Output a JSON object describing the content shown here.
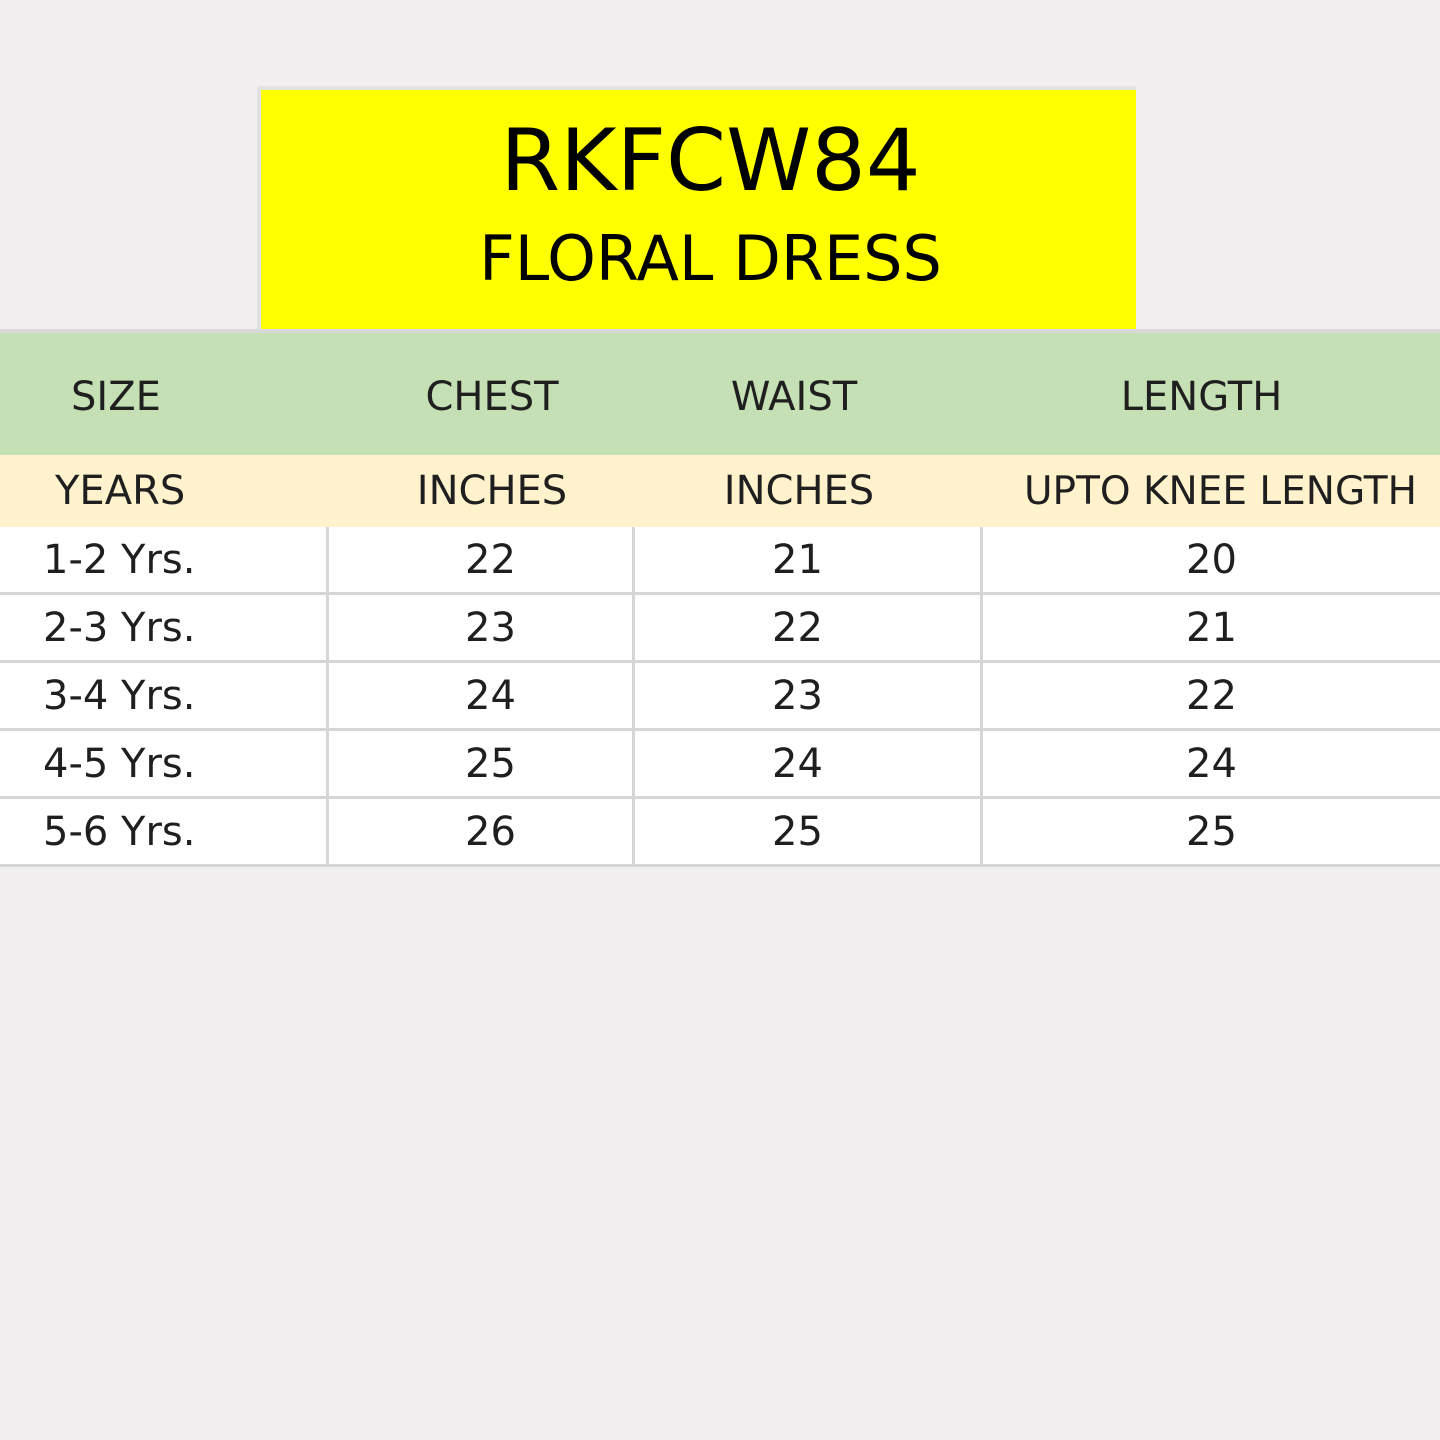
{
  "product": {
    "code": "RKFCW84",
    "name": "FLORAL DRESS"
  },
  "table": {
    "headers": [
      "SIZE",
      "CHEST",
      "WAIST",
      "LENGTH"
    ],
    "units": [
      "YEARS",
      "INCHES",
      "INCHES",
      "UPTO KNEE LENGTH"
    ],
    "rows": [
      [
        "1-2 Yrs.",
        "22",
        "21",
        "20"
      ],
      [
        "2-3 Yrs.",
        "23",
        "22",
        "21"
      ],
      [
        "3-4 Yrs.",
        "24",
        "23",
        "22"
      ],
      [
        "4-5 Yrs.",
        "25",
        "24",
        "24"
      ],
      [
        "5-6 Yrs.",
        "26",
        "25",
        "25"
      ]
    ]
  },
  "colors": {
    "title_background": "#ffff00",
    "header_background": "#c5e0b4",
    "units_background": "#fff2cc",
    "page_background": "#f1eff0"
  }
}
